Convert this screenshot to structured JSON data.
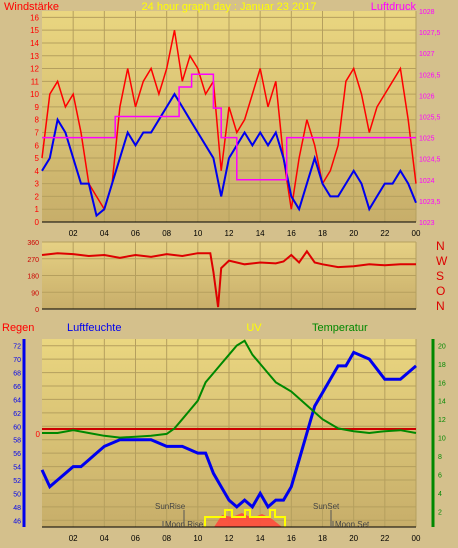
{
  "chart_data": [
    {
      "type": "line",
      "title": "24 hour graph day : Januar 23 2017",
      "left_label": "Windstärke",
      "right_label": "Luftdruck",
      "x_ticks": [
        "02",
        "04",
        "06",
        "08",
        "10",
        "12",
        "14",
        "16",
        "18",
        "20",
        "22",
        "00"
      ],
      "xlim": [
        0,
        24
      ],
      "y_left_ticks": [
        "0",
        "1",
        "2",
        "3",
        "4",
        "5",
        "6",
        "7",
        "8",
        "9",
        "10",
        "11",
        "12",
        "13",
        "14",
        "15",
        "16"
      ],
      "ylim_left": [
        0,
        16.5
      ],
      "y_right_ticks": [
        "1023",
        "1023,5",
        "1024",
        "1024,5",
        "1025",
        "1025,5",
        "1026",
        "1026,5",
        "1027",
        "1027,5",
        "1028"
      ],
      "ylim_right": [
        1023,
        1028
      ],
      "series": [
        {
          "color": "#ff0000",
          "x": [
            0,
            0.5,
            1,
            1.5,
            2,
            2.5,
            3,
            3.5,
            4,
            4.5,
            5,
            5.5,
            6,
            6.5,
            7,
            7.5,
            8,
            8.5,
            9,
            9.5,
            10,
            10.5,
            11,
            11.5,
            12,
            12.5,
            13,
            13.5,
            14,
            14.5,
            15,
            15.5,
            16,
            16.5,
            17,
            17.5,
            18,
            18.5,
            19,
            19.5,
            20,
            20.5,
            21,
            21.5,
            22,
            22.5,
            23,
            23.5,
            24
          ],
          "y": [
            5,
            10,
            11,
            9,
            10,
            7,
            3,
            2,
            1,
            3,
            9,
            12,
            9,
            11,
            12,
            10,
            12,
            15,
            11,
            13,
            12,
            10,
            11,
            4,
            9,
            7,
            8,
            10,
            12,
            9,
            11,
            5,
            1,
            5,
            8,
            6,
            3,
            4,
            6,
            11,
            12,
            10,
            7,
            9,
            10,
            11,
            12,
            8,
            3
          ]
        },
        {
          "color": "#0000ee",
          "x": [
            0,
            0.5,
            1,
            1.5,
            2,
            2.5,
            3,
            3.5,
            4,
            4.5,
            5,
            5.5,
            6,
            6.5,
            7,
            7.5,
            8,
            8.5,
            9,
            9.5,
            10,
            10.5,
            11,
            11.5,
            12,
            12.5,
            13,
            13.5,
            14,
            14.5,
            15,
            15.5,
            16,
            16.5,
            17,
            17.5,
            18,
            18.5,
            19,
            19.5,
            20,
            20.5,
            21,
            21.5,
            22,
            22.5,
            23,
            23.5,
            24
          ],
          "y": [
            4,
            5,
            8,
            7,
            5,
            3,
            3,
            0.5,
            1,
            3,
            5,
            7,
            6,
            7,
            7,
            8,
            9,
            10,
            9,
            8,
            7,
            6,
            5,
            2,
            5,
            6,
            7,
            6,
            7,
            6,
            7,
            5,
            2,
            1,
            3,
            5,
            3,
            2,
            2,
            3,
            4,
            3,
            1,
            2,
            3,
            3,
            4,
            3,
            1.5
          ]
        },
        {
          "color": "#ff00ff",
          "axis": "right",
          "x": [
            0,
            4.7,
            4.7,
            8.8,
            8.8,
            9.6,
            9.6,
            11,
            11,
            11.5,
            11.5,
            12.5,
            12.5,
            15.7,
            15.7,
            17,
            17,
            24
          ],
          "y": [
            1025,
            1025,
            1025.5,
            1025.5,
            1026.2,
            1026.2,
            1026.5,
            1026.5,
            1025.7,
            1025.7,
            1025,
            1025,
            1024,
            1024,
            1025,
            1025,
            1025,
            1025
          ]
        }
      ]
    },
    {
      "type": "line",
      "right_label": "N W S O N",
      "x_ticks": [
        "02",
        "04",
        "06",
        "08",
        "10",
        "12",
        "14",
        "16",
        "18",
        "20",
        "22",
        "00"
      ],
      "y_ticks": [
        "0",
        "90",
        "180",
        "270",
        "360"
      ],
      "ylim": [
        0,
        360
      ],
      "series": [
        {
          "color": "#dd0000",
          "x": [
            0,
            1,
            2,
            3,
            4,
            5,
            6,
            7,
            8,
            9,
            10,
            10.8,
            11,
            11.3,
            11.5,
            12,
            13,
            14,
            15,
            15.5,
            16,
            16.5,
            17,
            17.5,
            18,
            19,
            20,
            21,
            22,
            23,
            24
          ],
          "y": [
            290,
            300,
            295,
            285,
            290,
            275,
            290,
            280,
            295,
            285,
            300,
            300,
            200,
            10,
            220,
            260,
            240,
            250,
            245,
            255,
            290,
            250,
            310,
            250,
            240,
            225,
            230,
            240,
            235,
            240,
            240
          ]
        }
      ]
    },
    {
      "type": "line",
      "labels": {
        "regen": "Regen",
        "luftfeuchte": "Luftfeuchte",
        "uv": "UV",
        "temperatur": "Temperatur"
      },
      "annotations": {
        "sunrise": "SunRise",
        "sunset": "SunSet",
        "moonrise": "Moon Rise",
        "moonset": "Moon Set"
      },
      "x_ticks": [
        "02",
        "04",
        "06",
        "08",
        "10",
        "12",
        "14",
        "16",
        "18",
        "20",
        "22",
        "00"
      ],
      "regen_tick": "0",
      "y_left_ticks": [
        "46",
        "48",
        "50",
        "52",
        "54",
        "56",
        "58",
        "60",
        "62",
        "64",
        "66",
        "68",
        "70",
        "72"
      ],
      "ylim_left": [
        45,
        73
      ],
      "y_right_ticks": [
        "2",
        "4",
        "6",
        "8",
        "10",
        "12",
        "14",
        "16",
        "18",
        "20"
      ],
      "ylim_right": [
        0.3,
        20.7
      ],
      "series": [
        {
          "name": "Luftfeuchte",
          "color": "#0000ee",
          "x": [
            0,
            0.5,
            1,
            1.5,
            2,
            2.5,
            3,
            3.5,
            4,
            5,
            6,
            7,
            8,
            9,
            10,
            10.5,
            11,
            11.5,
            12,
            12.5,
            13,
            13.5,
            14,
            14.5,
            15,
            15.5,
            16,
            16.5,
            17,
            17.5,
            18,
            18.5,
            19,
            19.5,
            20,
            21,
            22,
            23,
            24
          ],
          "y": [
            53.5,
            51,
            52,
            53,
            54,
            54,
            55,
            56,
            57,
            58,
            58,
            58,
            57,
            57,
            56,
            56,
            53,
            51,
            49,
            48,
            49,
            48,
            50,
            48,
            49,
            49,
            51,
            55,
            59,
            63,
            65,
            67,
            69,
            69,
            71,
            70,
            67,
            67,
            69
          ]
        },
        {
          "name": "Temperatur",
          "color": "#008800",
          "axis": "right",
          "x": [
            0,
            1,
            2,
            3,
            4,
            5,
            6,
            7,
            8,
            8.5,
            9,
            9.5,
            10,
            10.5,
            11,
            11.5,
            12,
            12.5,
            13,
            13.5,
            14,
            14.5,
            15,
            15.5,
            16,
            17,
            18,
            19,
            20,
            21,
            22,
            23,
            24
          ],
          "y": [
            10.5,
            10.5,
            10.8,
            10.5,
            10.2,
            10,
            10.1,
            10.2,
            10.4,
            11,
            12,
            13,
            14,
            16,
            17,
            18,
            19,
            20,
            20.5,
            19,
            18,
            17,
            16,
            15.5,
            15,
            13.5,
            12,
            11,
            10.7,
            10.5,
            10.7,
            10.8,
            10.5
          ]
        }
      ],
      "regen_line_color": "#cc0000"
    }
  ]
}
